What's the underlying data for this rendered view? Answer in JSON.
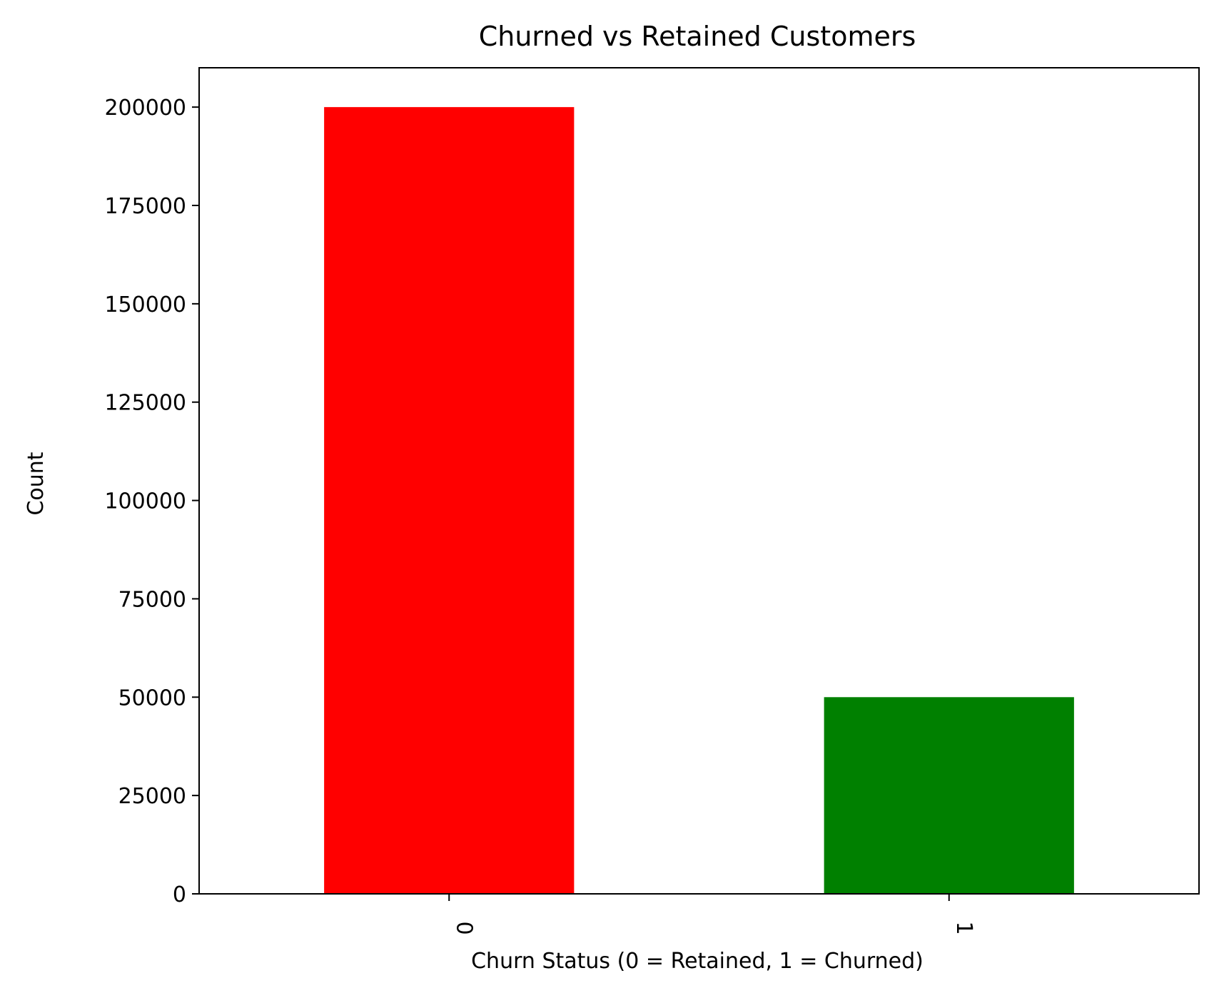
{
  "chart_data": {
    "type": "bar",
    "title": "Churned vs Retained Customers",
    "xlabel": "Churn Status (0 = Retained, 1 = Churned)",
    "ylabel": "Count",
    "categories": [
      "0",
      "1"
    ],
    "values": [
      200000,
      50000
    ],
    "colors": [
      "#ff0000",
      "#008000"
    ],
    "ylim": [
      0,
      210000
    ],
    "yticks": [
      0,
      25000,
      50000,
      75000,
      100000,
      125000,
      150000,
      175000,
      200000
    ],
    "ytick_labels": [
      "0",
      "25000",
      "50000",
      "75000",
      "100000",
      "125000",
      "150000",
      "175000",
      "200000"
    ],
    "grid": false,
    "legend": "none"
  }
}
